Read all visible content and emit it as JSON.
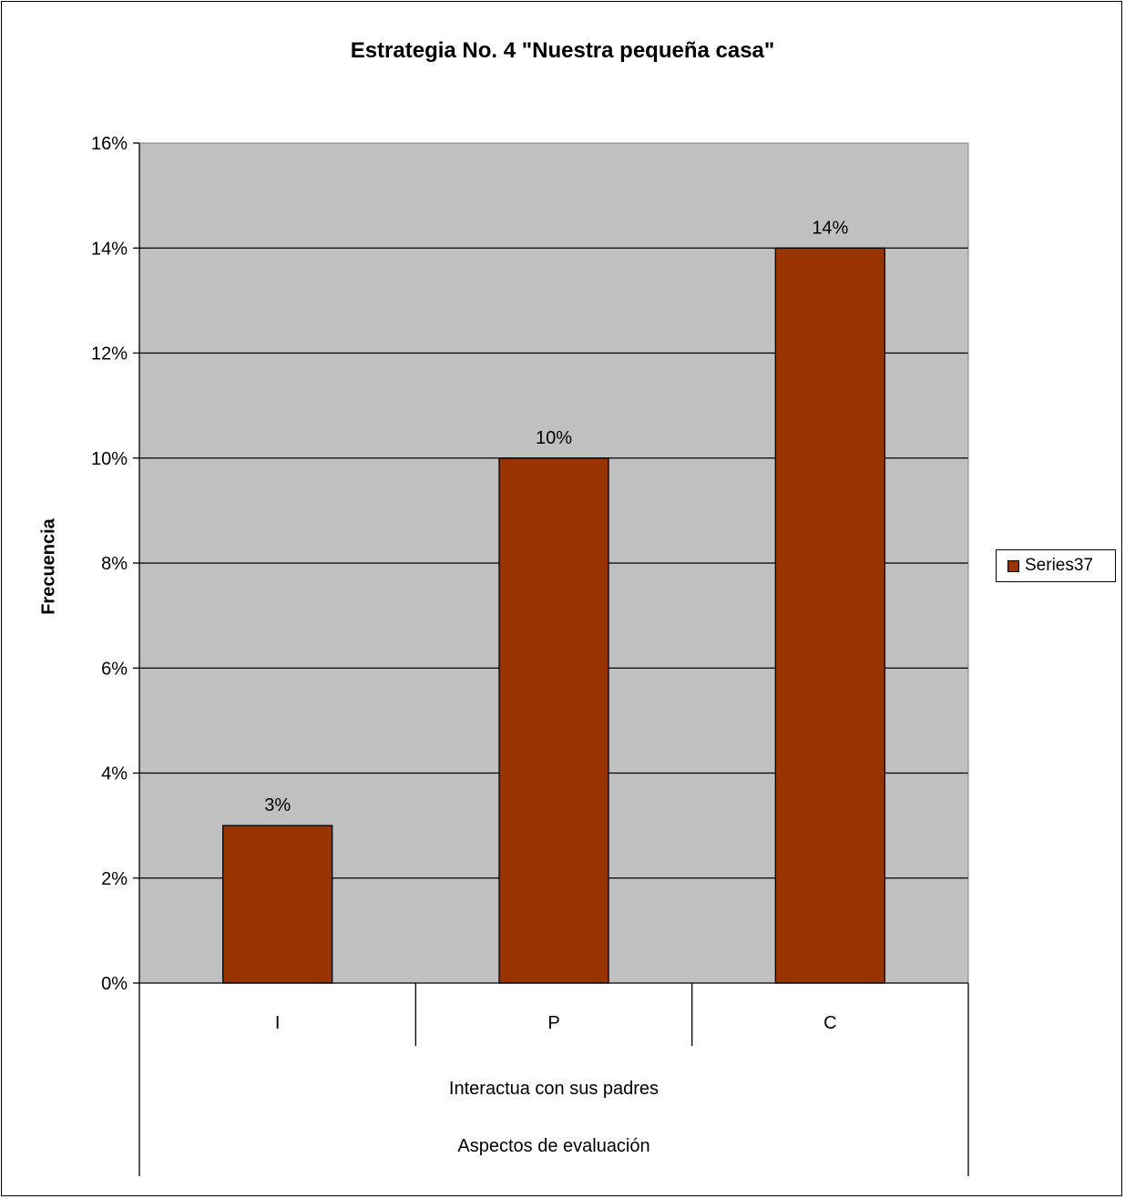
{
  "chart_data": {
    "type": "bar",
    "title": "Estrategia No. 4 \"Nuestra pequeña casa\"",
    "ylabel": "Frecuencia",
    "categories": [
      "I",
      "P",
      "C"
    ],
    "category_group_label": "Interactua con sus padres",
    "xlabel": "Aspectos de evaluación",
    "series": [
      {
        "name": "Series37",
        "values": [
          0.03,
          0.1,
          0.14
        ]
      }
    ],
    "data_labels": [
      "3%",
      "10%",
      "14%"
    ],
    "ylim": [
      0,
      0.16
    ],
    "yticks": [
      0,
      0.02,
      0.04,
      0.06,
      0.08,
      0.1,
      0.12,
      0.14,
      0.16
    ],
    "ytick_labels": [
      "0%",
      "2%",
      "4%",
      "6%",
      "8%",
      "10%",
      "12%",
      "14%",
      "16%"
    ],
    "grid": true,
    "legend_position": "right",
    "colors": {
      "bar": "#993300",
      "plot_bg": "#c0c0c0"
    }
  }
}
